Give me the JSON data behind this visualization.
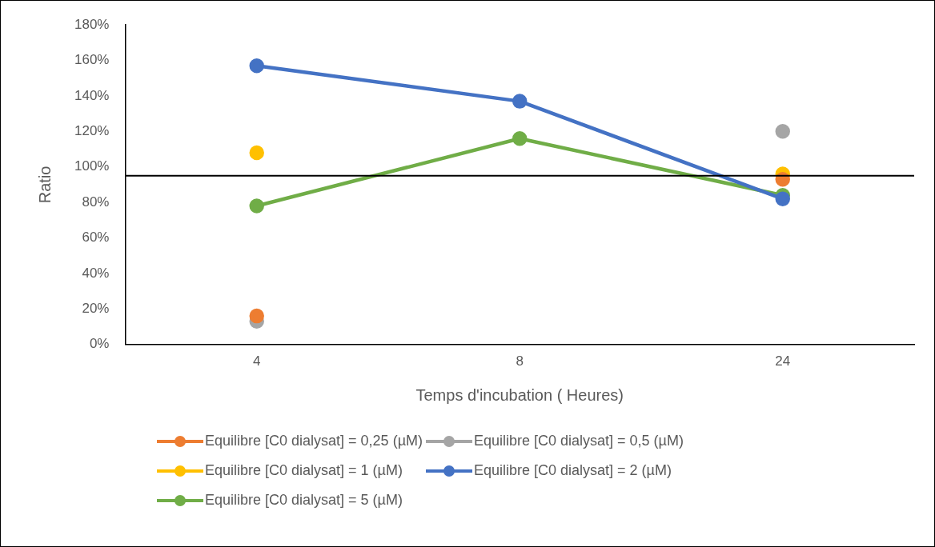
{
  "chart_data": {
    "type": "line",
    "xlabel": "Temps d'incubation ( Heures)",
    "ylabel": "Ratio",
    "categories": [
      "4",
      "8",
      "24"
    ],
    "series": [
      {
        "name": "Equilibre [C0 dialysat] = 0,25 (µM)",
        "type": "scatter",
        "color": "#ed7d31",
        "values": [
          16,
          null,
          93
        ]
      },
      {
        "name": "Equilibre [C0 dialysat] = 0,5 (µM)",
        "type": "scatter",
        "color": "#a5a5a5",
        "values": [
          13,
          null,
          120
        ]
      },
      {
        "name": "Equilibre [C0 dialysat] = 1 (µM)",
        "type": "scatter",
        "color": "#ffc000",
        "values": [
          108,
          null,
          96
        ]
      },
      {
        "name": "Equilibre [C0 dialysat] = 2 (µM)",
        "color": "#4472c4",
        "values": [
          157,
          137,
          82
        ]
      },
      {
        "name": "Equilibre [C0 dialysat] = 5 (µM)",
        "color": "#70ad47",
        "values": [
          78,
          116,
          84
        ]
      }
    ],
    "ylim": [
      0,
      180
    ],
    "yticks": [
      {
        "value": 0,
        "label": "0%"
      },
      {
        "value": 20,
        "label": "20%"
      },
      {
        "value": 40,
        "label": "40%"
      },
      {
        "value": 60,
        "label": "60%"
      },
      {
        "value": 80,
        "label": "80%"
      },
      {
        "value": 100,
        "label": "100%"
      },
      {
        "value": 120,
        "label": "120%"
      },
      {
        "value": 140,
        "label": "140%"
      },
      {
        "value": 160,
        "label": "160%"
      },
      {
        "value": 180,
        "label": "180%"
      }
    ],
    "ref_lines": [
      {
        "axis": "y",
        "value": 95,
        "color": "#000000"
      }
    ],
    "grid": false,
    "legend": "bottom",
    "marker": "circle",
    "line_style": "solid"
  }
}
